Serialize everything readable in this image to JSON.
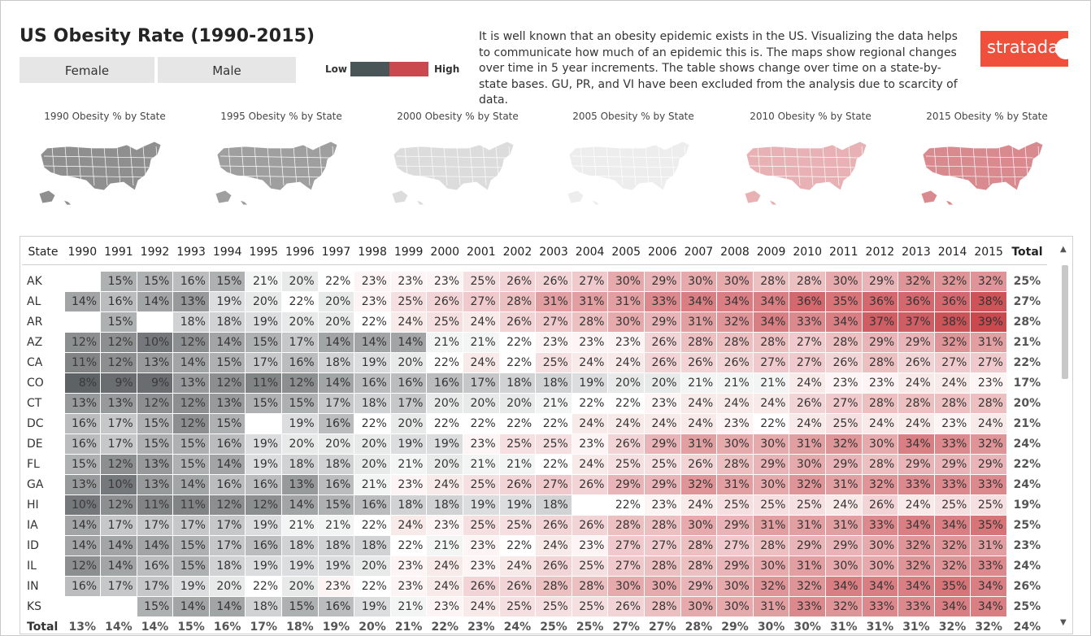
{
  "title": "US Obesity Rate (1990-2015)",
  "filters": {
    "female": "Female",
    "male": "Male"
  },
  "legend": {
    "low": "Low",
    "high": "High",
    "low_color": "#4a5558",
    "high_color": "#c9494f"
  },
  "description": "It is well known that an obesity epidemic exists in the US.  Visualizing the data helps to communicate how much of an epidemic this is.  The maps show regional changes over time in 5 year increments.  The table shows change over time on a state-by-state bases.  GU, PR, and VI have been excluded from the analysis due to scarcity of data.",
  "logo": {
    "text": "stratada"
  },
  "maps": [
    {
      "title": "1990 Obesity % by State",
      "tone": "#8f8f8f"
    },
    {
      "title": "1995 Obesity % by State",
      "tone": "#9f9f9f"
    },
    {
      "title": "2000 Obesity % by State",
      "tone": "#dcdcdc"
    },
    {
      "title": "2005 Obesity % by State",
      "tone": "#ededed"
    },
    {
      "title": "2010 Obesity % by State",
      "tone": "#e8b1b4"
    },
    {
      "title": "2015 Obesity % by State",
      "tone": "#d98a8e"
    }
  ],
  "table": {
    "state_header": "State",
    "total_header": "Total",
    "years": [
      "1990",
      "1991",
      "1992",
      "1993",
      "1994",
      "1995",
      "1996",
      "1997",
      "1998",
      "1999",
      "2000",
      "2001",
      "2002",
      "2003",
      "2004",
      "2005",
      "2006",
      "2007",
      "2008",
      "2009",
      "2010",
      "2011",
      "2012",
      "2013",
      "2014",
      "2015"
    ],
    "rows": [
      {
        "state": "AK",
        "values": [
          null,
          15,
          15,
          16,
          15,
          21,
          20,
          22,
          23,
          23,
          23,
          25,
          26,
          26,
          27,
          30,
          29,
          30,
          30,
          28,
          28,
          30,
          29,
          32,
          32,
          32
        ],
        "total": "25%"
      },
      {
        "state": "AL",
        "values": [
          14,
          16,
          14,
          13,
          19,
          20,
          22,
          20,
          23,
          25,
          26,
          27,
          28,
          31,
          31,
          31,
          33,
          34,
          34,
          34,
          36,
          35,
          36,
          36,
          36,
          38
        ],
        "total": "27%"
      },
      {
        "state": "AR",
        "values": [
          null,
          15,
          null,
          18,
          18,
          19,
          20,
          20,
          22,
          24,
          25,
          24,
          26,
          27,
          28,
          30,
          29,
          31,
          32,
          34,
          33,
          34,
          37,
          37,
          38,
          39
        ],
        "total": "28%"
      },
      {
        "state": "AZ",
        "values": [
          12,
          12,
          10,
          12,
          14,
          15,
          17,
          14,
          14,
          14,
          21,
          21,
          22,
          23,
          23,
          23,
          26,
          28,
          28,
          28,
          27,
          28,
          29,
          29,
          32,
          31
        ],
        "total": "21%"
      },
      {
        "state": "CA",
        "values": [
          11,
          12,
          13,
          14,
          15,
          17,
          16,
          18,
          19,
          20,
          22,
          24,
          22,
          25,
          24,
          24,
          26,
          26,
          26,
          27,
          27,
          26,
          28,
          26,
          27,
          27
        ],
        "total": "22%"
      },
      {
        "state": "CO",
        "values": [
          8,
          9,
          9,
          13,
          12,
          11,
          12,
          14,
          16,
          16,
          16,
          17,
          18,
          18,
          19,
          20,
          20,
          21,
          21,
          21,
          24,
          23,
          23,
          24,
          24,
          23
        ],
        "total": "17%"
      },
      {
        "state": "CT",
        "values": [
          13,
          13,
          12,
          12,
          13,
          15,
          15,
          17,
          18,
          17,
          20,
          20,
          20,
          21,
          22,
          22,
          23,
          24,
          24,
          24,
          26,
          27,
          28,
          28,
          28,
          28
        ],
        "total": "20%"
      },
      {
        "state": "DC",
        "values": [
          16,
          17,
          15,
          12,
          15,
          null,
          19,
          16,
          22,
          20,
          22,
          22,
          22,
          22,
          24,
          24,
          24,
          24,
          23,
          22,
          24,
          25,
          24,
          24,
          23,
          24
        ],
        "total": "21%"
      },
      {
        "state": "DE",
        "values": [
          16,
          17,
          15,
          15,
          16,
          19,
          20,
          20,
          20,
          19,
          19,
          23,
          25,
          25,
          23,
          26,
          29,
          31,
          30,
          30,
          31,
          32,
          30,
          34,
          33,
          32
        ],
        "total": "24%"
      },
      {
        "state": "FL",
        "values": [
          15,
          12,
          13,
          15,
          14,
          19,
          18,
          18,
          20,
          21,
          20,
          21,
          21,
          22,
          24,
          25,
          25,
          26,
          28,
          29,
          30,
          29,
          28,
          29,
          29,
          29
        ],
        "total": "22%"
      },
      {
        "state": "GA",
        "values": [
          13,
          10,
          13,
          14,
          16,
          16,
          13,
          16,
          21,
          23,
          24,
          25,
          26,
          27,
          26,
          29,
          29,
          32,
          31,
          30,
          32,
          31,
          32,
          33,
          33,
          33
        ],
        "total": "24%"
      },
      {
        "state": "HI",
        "values": [
          10,
          12,
          11,
          11,
          12,
          12,
          14,
          15,
          16,
          18,
          18,
          19,
          19,
          18,
          null,
          22,
          23,
          24,
          25,
          25,
          25,
          24,
          26,
          24,
          25,
          25
        ],
        "total": "19%"
      },
      {
        "state": "IA",
        "values": [
          14,
          17,
          17,
          17,
          17,
          19,
          21,
          21,
          22,
          24,
          23,
          25,
          25,
          26,
          26,
          28,
          28,
          30,
          29,
          31,
          31,
          31,
          33,
          34,
          34,
          35
        ],
        "total": "25%"
      },
      {
        "state": "ID",
        "values": [
          14,
          14,
          14,
          15,
          17,
          16,
          18,
          18,
          18,
          22,
          21,
          23,
          22,
          24,
          23,
          27,
          27,
          28,
          27,
          28,
          29,
          29,
          30,
          32,
          32,
          31
        ],
        "total": "23%"
      },
      {
        "state": "IL",
        "values": [
          12,
          14,
          16,
          15,
          18,
          19,
          19,
          19,
          20,
          23,
          24,
          23,
          24,
          26,
          25,
          27,
          28,
          28,
          29,
          30,
          31,
          30,
          30,
          32,
          32,
          33
        ],
        "total": "24%"
      },
      {
        "state": "IN",
        "values": [
          16,
          17,
          17,
          19,
          20,
          22,
          20,
          23,
          22,
          23,
          24,
          26,
          26,
          28,
          28,
          30,
          30,
          29,
          30,
          32,
          32,
          34,
          34,
          34,
          35,
          34
        ],
        "total": "26%"
      },
      {
        "state": "KS",
        "values": [
          null,
          null,
          15,
          14,
          14,
          18,
          15,
          16,
          19,
          21,
          23,
          24,
          25,
          25,
          25,
          26,
          28,
          30,
          30,
          31,
          33,
          32,
          33,
          33,
          34,
          34
        ],
        "total": "25%"
      }
    ],
    "totals": {
      "label": "Total",
      "values": [
        "13%",
        "14%",
        "14%",
        "15%",
        "16%",
        "17%",
        "18%",
        "19%",
        "20%",
        "21%",
        "22%",
        "23%",
        "24%",
        "25%",
        "25%",
        "27%",
        "27%",
        "28%",
        "29%",
        "30%",
        "30%",
        "31%",
        "31%",
        "31%",
        "32%",
        "32%"
      ],
      "total": "24%"
    }
  }
}
